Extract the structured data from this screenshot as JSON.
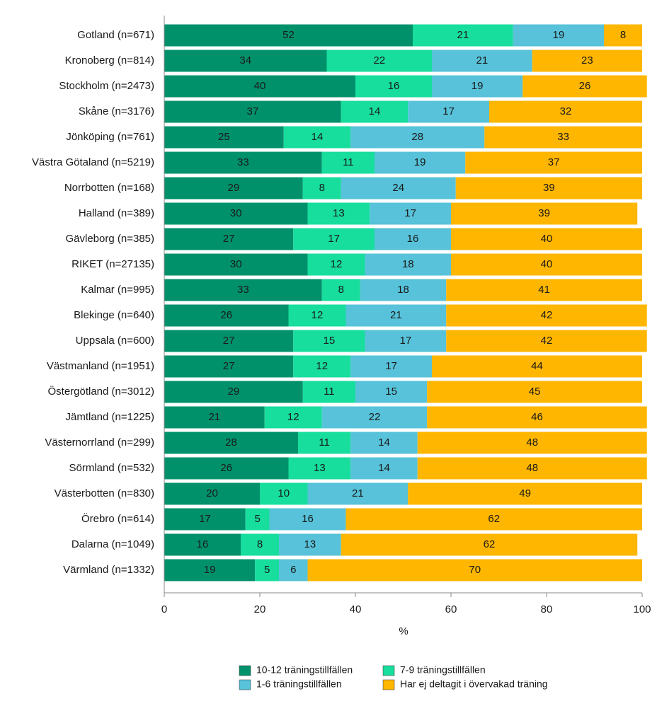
{
  "chart_data": {
    "type": "stacked-bar-horizontal",
    "x_label": "%",
    "categories": [
      "Gotland (n=671)",
      "Kronoberg (n=814)",
      "Stockholm (n=2473)",
      "Skåne (n=3176)",
      "Jönköping (n=761)",
      "Västra Götaland (n=5219)",
      "Norrbotten (n=168)",
      "Halland (n=389)",
      "Gävleborg (n=385)",
      "RIKET (n=27135)",
      "Kalmar (n=995)",
      "Blekinge (n=640)",
      "Uppsala (n=600)",
      "Västmanland (n=1951)",
      "Östergötland (n=3012)",
      "Jämtland (n=1225)",
      "Västernorrland (n=299)",
      "Sörmland (n=532)",
      "Västerbotten (n=830)",
      "Örebro (n=614)",
      "Dalarna (n=1049)",
      "Värmland (n=1332)"
    ],
    "series": [
      {
        "name": "10-12 träningstillfällen",
        "color": "#00916b",
        "values": [
          52,
          34,
          40,
          37,
          25,
          33,
          29,
          30,
          27,
          30,
          33,
          26,
          27,
          27,
          29,
          21,
          28,
          26,
          20,
          17,
          16,
          19
        ]
      },
      {
        "name": "7-9 träningstillfällen",
        "color": "#17dd9d",
        "values": [
          21,
          22,
          16,
          14,
          14,
          11,
          8,
          13,
          17,
          12,
          8,
          12,
          15,
          12,
          11,
          12,
          11,
          13,
          10,
          5,
          8,
          5
        ]
      },
      {
        "name": "1-6 träningstillfällen",
        "color": "#57c2d9",
        "values": [
          19,
          21,
          19,
          17,
          28,
          19,
          24,
          17,
          16,
          18,
          18,
          21,
          17,
          17,
          15,
          22,
          14,
          14,
          21,
          16,
          13,
          6
        ]
      },
      {
        "name": "Har ej deltagit i övervakad träning",
        "color": "#ffb600",
        "values": [
          8,
          23,
          26,
          32,
          33,
          37,
          39,
          39,
          40,
          40,
          41,
          42,
          42,
          44,
          45,
          46,
          48,
          48,
          49,
          62,
          62,
          70
        ]
      }
    ],
    "xlim": [
      0,
      100
    ],
    "xticks": [
      0,
      20,
      40,
      60,
      80,
      100
    ]
  }
}
